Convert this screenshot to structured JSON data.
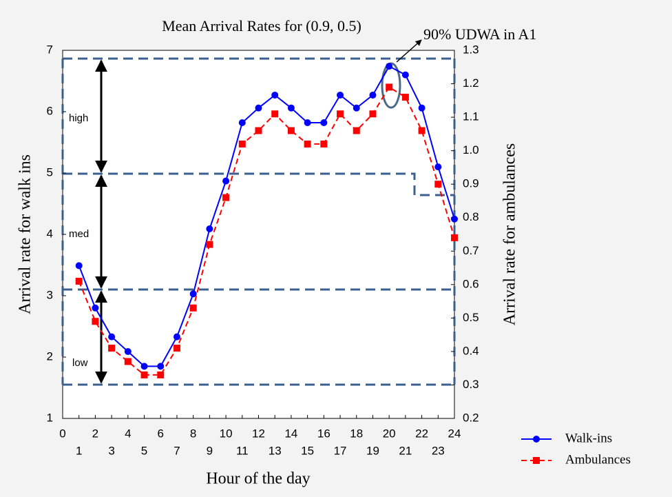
{
  "chart_data": {
    "type": "line",
    "title": "Mean Arrival Rates for (0.9, 0.5)",
    "xlabel": "Hour of the day",
    "ylabel": "Arrival rate for walk ins",
    "y2label": "Arrival rate for ambulances",
    "x": [
      1,
      2,
      3,
      4,
      5,
      6,
      7,
      8,
      9,
      10,
      11,
      12,
      13,
      14,
      15,
      16,
      17,
      18,
      19,
      20,
      21,
      22,
      23,
      24
    ],
    "xlim": [
      0,
      24
    ],
    "xticks": [
      0,
      1,
      2,
      3,
      4,
      5,
      6,
      7,
      8,
      9,
      10,
      11,
      12,
      13,
      14,
      15,
      16,
      17,
      18,
      19,
      20,
      21,
      22,
      23,
      24
    ],
    "ylim": [
      1,
      7
    ],
    "yticks": [
      1,
      2,
      3,
      4,
      5,
      6,
      7
    ],
    "y2lim": [
      0.2,
      1.3
    ],
    "y2ticks": [
      0.2,
      0.3,
      0.4,
      0.5,
      0.6,
      0.7,
      0.8,
      0.9,
      {
        "value": 1,
        "label": "1.0"
      },
      1.1,
      1.2,
      1.3
    ],
    "legend": "bottom-right",
    "series": [
      {
        "name": "Walk-ins",
        "color": "#0000ff",
        "marker": "circle",
        "dashed": false,
        "values": [
          3.49,
          2.8,
          2.33,
          2.09,
          1.85,
          1.85,
          2.33,
          3.03,
          4.09,
          4.87,
          5.82,
          6.06,
          6.27,
          6.06,
          5.82,
          5.82,
          6.27,
          6.06,
          6.27,
          6.74,
          6.6,
          6.06,
          5.1,
          4.25
        ]
      },
      {
        "name": "Ambulances",
        "color": "#ff0000",
        "marker": "square",
        "dashed": true,
        "axis": "y2",
        "values": [
          0.61,
          0.49,
          0.41,
          0.37,
          0.33,
          0.33,
          0.41,
          0.53,
          0.72,
          0.86,
          1.02,
          1.06,
          1.11,
          1.06,
          1.02,
          1.02,
          1.11,
          1.06,
          1.11,
          1.19,
          1.16,
          1.06,
          0.9,
          0.74
        ]
      }
    ],
    "annotations": [
      "high",
      "med",
      "low",
      "90% UDWA in A1"
    ]
  }
}
